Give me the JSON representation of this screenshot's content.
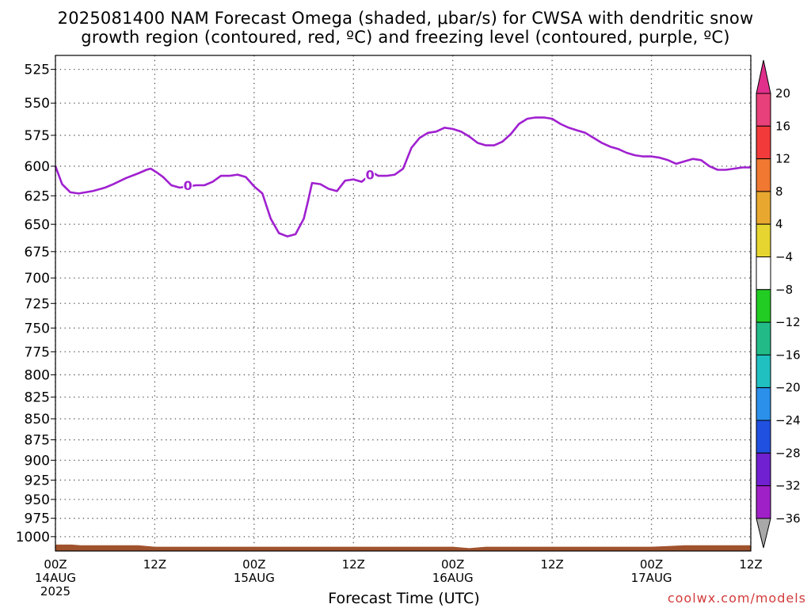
{
  "title": {
    "line1": "2025081400 NAM Forecast Omega (shaded, μbar/s) for CWSA with dendritic snow",
    "line2": "growth region (contoured, red, ºC) and freezing level (contoured, purple, ºC)"
  },
  "credit": "coolwx.com/models",
  "chart_data": {
    "type": "line",
    "title": "2025081400 NAM Forecast Omega (shaded, μbar/s) for CWSA with dendritic snow growth region (contoured, red, ºC) and freezing level (contoured, purple, ºC)",
    "xlabel": "Forecast Time (UTC)",
    "ylabel": "",
    "x_unit": "hours since 00Z 14AUG 2025",
    "xlim": [
      0,
      84
    ],
    "ylim": [
      1020,
      515
    ],
    "y_scale": "log (pressure, hPa)",
    "grid": true,
    "y_ticks": [
      525,
      550,
      575,
      600,
      625,
      650,
      675,
      700,
      725,
      750,
      775,
      800,
      825,
      850,
      875,
      900,
      925,
      950,
      975,
      1000
    ],
    "x_ticks": [
      {
        "x": 0,
        "label": "00Z",
        "sub": "14AUG",
        "sub2": "2025"
      },
      {
        "x": 12,
        "label": "12Z",
        "sub": "",
        "sub2": ""
      },
      {
        "x": 24,
        "label": "00Z",
        "sub": "15AUG",
        "sub2": ""
      },
      {
        "x": 36,
        "label": "12Z",
        "sub": "",
        "sub2": ""
      },
      {
        "x": 48,
        "label": "00Z",
        "sub": "16AUG",
        "sub2": ""
      },
      {
        "x": 60,
        "label": "12Z",
        "sub": "",
        "sub2": ""
      },
      {
        "x": 72,
        "label": "00Z",
        "sub": "17AUG",
        "sub2": ""
      },
      {
        "x": 84,
        "label": "12Z",
        "sub": "",
        "sub2": ""
      }
    ],
    "series": [
      {
        "name": "freezing level",
        "color": "#a020d0",
        "x": [
          0,
          0.8,
          1.8,
          2.8,
          4.5,
          6,
          7,
          8.5,
          10,
          11,
          11.5,
          12.2,
          13,
          14,
          15,
          16,
          17,
          18,
          19,
          20,
          21,
          22,
          23,
          24,
          25,
          26,
          27,
          28,
          29,
          30,
          30.5,
          31,
          32,
          33,
          34,
          35,
          36,
          37,
          37.5,
          38,
          38.5,
          39,
          40,
          41,
          42,
          43,
          44,
          45,
          46,
          47,
          48,
          49,
          50,
          51,
          52,
          53,
          54,
          55,
          56,
          57,
          58,
          59,
          60,
          61,
          62,
          63,
          64,
          65,
          66,
          67,
          68,
          69,
          70,
          71,
          72,
          73,
          74,
          75,
          76,
          77,
          78,
          79,
          80,
          81,
          82,
          83,
          84
        ],
        "y": [
          600,
          615,
          622,
          623,
          621,
          618,
          615,
          610,
          606,
          603,
          602,
          605,
          609,
          616,
          618,
          617,
          616,
          616,
          613,
          608,
          608,
          607,
          609,
          617,
          623,
          645,
          658,
          661,
          659,
          645,
          630,
          614,
          615,
          619,
          621,
          612,
          611,
          613,
          610,
          607,
          606,
          608,
          608,
          607,
          602,
          585,
          577,
          573,
          572,
          569,
          570,
          572,
          576,
          581,
          583,
          583,
          580,
          574,
          566,
          562,
          561,
          561,
          562,
          566,
          569,
          571,
          573,
          577,
          581,
          584,
          586,
          589,
          591,
          592,
          592,
          593,
          595,
          598,
          596,
          594,
          595,
          600,
          603,
          603,
          602,
          601,
          601
        ]
      },
      {
        "name": "surface (terrain)",
        "color": "#a0522d",
        "x": [
          0,
          2,
          3,
          10,
          12,
          24,
          36,
          48,
          50,
          52,
          60,
          72,
          74,
          76,
          84
        ],
        "y": [
          1011,
          1011,
          1012,
          1012,
          1014,
          1014,
          1014,
          1014,
          1016,
          1014,
          1014,
          1014,
          1013,
          1012,
          1012
        ]
      }
    ],
    "contour_labels": [
      {
        "text": "0",
        "x": 16,
        "y": 616
      },
      {
        "text": "0",
        "x": 38,
        "y": 607
      }
    ],
    "colorbar": {
      "unit": "μbar/s",
      "labels": [
        "20",
        "16",
        "12",
        "8",
        "4",
        "−4",
        "−8",
        "−12",
        "−16",
        "−20",
        "−24",
        "−28",
        "−32",
        "−36"
      ],
      "colors": [
        "#e8407a",
        "#f23a3a",
        "#f07830",
        "#e8a830",
        "#e6d530",
        "#ffffff",
        "#22cc22",
        "#22bb88",
        "#20c0c0",
        "#2a90ea",
        "#2050e0",
        "#7020d0",
        "#a020c8",
        "#a8a8a8",
        "#000000",
        "#e0308c"
      ]
    }
  }
}
